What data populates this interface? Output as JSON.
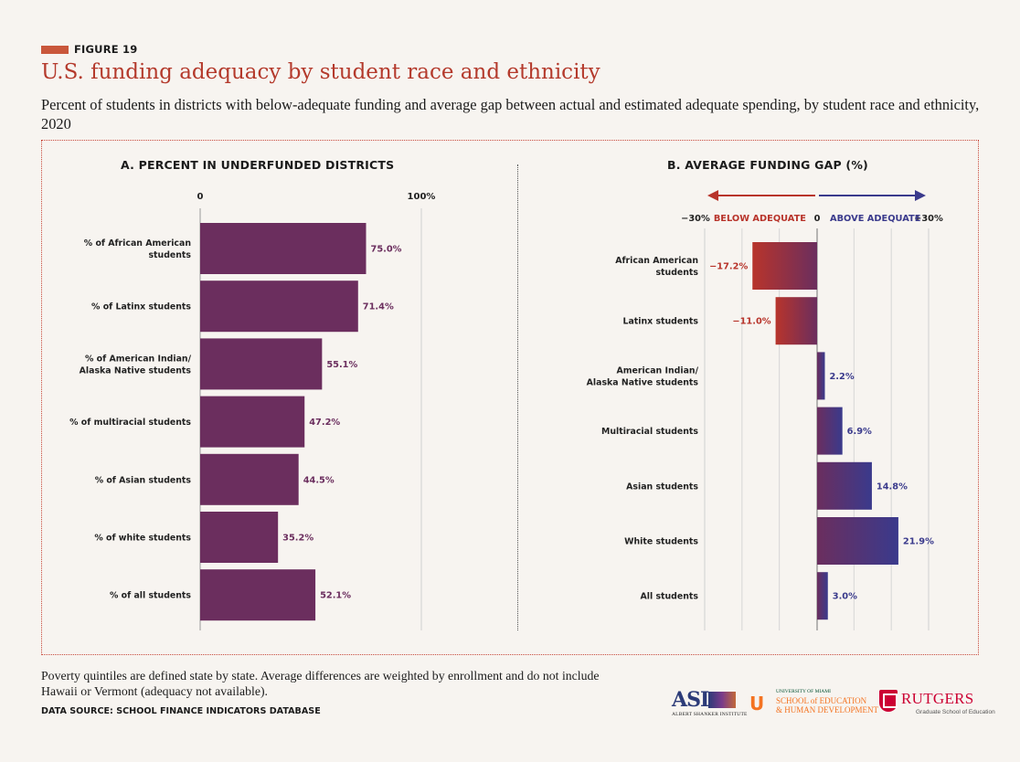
{
  "figure_label": "FIGURE 19",
  "title": "U.S. funding adequacy by student race and ethnicity",
  "subtitle": "Percent of students in districts with below-adequate funding and average gap between actual and estimated adequate spending, by student race and ethnicity, 2020",
  "note": "Poverty quintiles are defined state by state. Average differences are weighted by enrollment and do not include Hawaii or Vermont (adequacy not available).",
  "source": "DATA SOURCE: SCHOOL FINANCE INDICATORS DATABASE",
  "logos": {
    "asi_letters": "ASI",
    "asi_caption": "ALBERT SHANKER INSTITUTE",
    "um_small": "UNIVERSITY OF MIAMI",
    "um_line1": "SCHOOL of EDUCATION",
    "um_line2": "& HUMAN DEVELOPMENT",
    "rutgers_name": "RUTGERS",
    "rutgers_sub": "Graduate School of Education"
  },
  "colors": {
    "bar_purple": "#6b2e5e",
    "below_red": "#b8342b",
    "above_blue": "#3a3a8c",
    "accent": "#c84a3c"
  },
  "chart_data": [
    {
      "type": "bar",
      "orientation": "horizontal",
      "title": "A. PERCENT IN UNDERFUNDED DISTRICTS",
      "axis_labels": [
        "0",
        "100%"
      ],
      "xlim": [
        0,
        100
      ],
      "categories": [
        "% of African American students",
        "% of Latinx students",
        "% of American Indian/ Alaska Native students",
        "% of multiracial students",
        "% of Asian students",
        "% of white students",
        "% of all students"
      ],
      "category_lines": [
        [
          "% of African American",
          "students"
        ],
        [
          "% of Latinx students"
        ],
        [
          "% of American Indian/",
          "Alaska Native students"
        ],
        [
          "% of multiracial students"
        ],
        [
          "% of Asian students"
        ],
        [
          "% of white students"
        ],
        [
          "% of all students"
        ]
      ],
      "values": [
        75.0,
        71.4,
        55.1,
        47.2,
        44.5,
        35.2,
        52.1
      ],
      "value_labels": [
        "75.0%",
        "71.4%",
        "55.1%",
        "47.2%",
        "44.5%",
        "35.2%",
        "52.1%"
      ],
      "grid": true
    },
    {
      "type": "bar",
      "orientation": "horizontal",
      "title": "B. AVERAGE FUNDING GAP (%)",
      "axis_labels": [
        "−30%",
        "0",
        "+30%"
      ],
      "direction_labels": [
        "BELOW ADEQUATE",
        "ABOVE ADEQUATE"
      ],
      "xlim": [
        -30,
        30
      ],
      "categories": [
        "African American students",
        "Latinx students",
        "American Indian/ Alaska Native students",
        "Multiracial students",
        "Asian students",
        "White students",
        "All students"
      ],
      "category_lines": [
        [
          "African American",
          "students"
        ],
        [
          "Latinx students"
        ],
        [
          "American Indian/",
          "Alaska Native students"
        ],
        [
          "Multiracial students"
        ],
        [
          "Asian students"
        ],
        [
          "White students"
        ],
        [
          "All students"
        ]
      ],
      "values": [
        -17.2,
        -11.0,
        2.2,
        6.9,
        14.8,
        21.9,
        3.0
      ],
      "value_labels": [
        "−17.2%",
        "−11.0%",
        "2.2%",
        "6.9%",
        "14.8%",
        "21.9%",
        "3.0%"
      ],
      "grid": true
    }
  ]
}
